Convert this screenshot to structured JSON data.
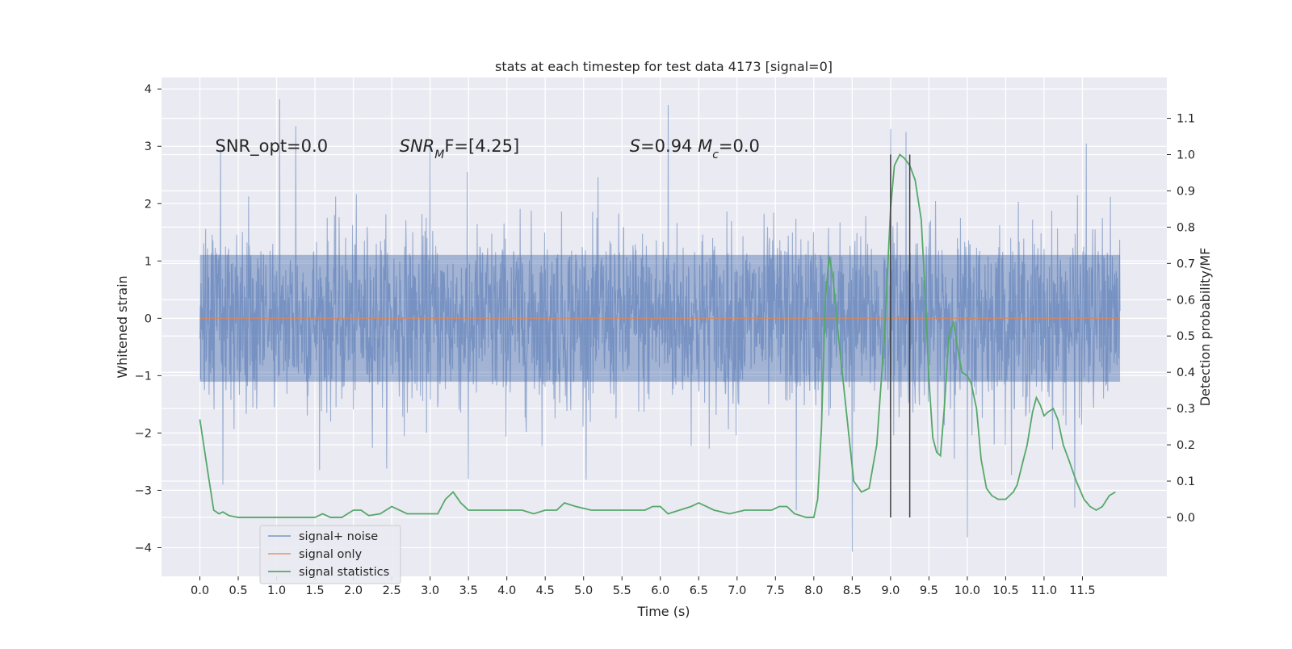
{
  "chart_data": {
    "type": "line",
    "title": "stats at each timestep for test data 4173 [signal=0]",
    "xlabel": "Time (s)",
    "ylabel": "Whitened strain",
    "y2label": "Detection probability/MF",
    "xlim": [
      -0.5,
      12.6
    ],
    "ylim": [
      -4.5,
      4.2
    ],
    "y2lim": [
      -0.1625,
      1.2125
    ],
    "grid": true,
    "x_ticks": [
      0.0,
      0.5,
      1.0,
      1.5,
      2.0,
      2.5,
      3.0,
      3.5,
      4.0,
      4.5,
      5.0,
      5.5,
      6.0,
      6.5,
      7.0,
      7.5,
      8.0,
      8.5,
      9.0,
      9.5,
      10.0,
      10.5,
      11.0,
      11.5
    ],
    "x_tick_labels": [
      "0.0",
      "0.5",
      "1.0",
      "1.5",
      "2.0",
      "2.5",
      "3.0",
      "3.5",
      "4.0",
      "4.5",
      "5.0",
      "5.5",
      "6.0",
      "6.5",
      "7.0",
      "7.5",
      "8.0",
      "8.5",
      "9.0",
      "9.5",
      "10.0",
      "10.5",
      "11.0",
      "11.5"
    ],
    "y_ticks": [
      -4,
      -3,
      -2,
      -1,
      0,
      1,
      2,
      3,
      4
    ],
    "y_tick_labels": [
      "−4",
      "−3",
      "−2",
      "−1",
      "0",
      "1",
      "2",
      "3",
      "4"
    ],
    "y2_ticks": [
      0.0,
      0.1,
      0.2,
      0.3,
      0.4,
      0.5,
      0.6,
      0.7,
      0.8,
      0.9,
      1.0,
      1.1
    ],
    "y2_tick_labels": [
      "0.0",
      "0.1",
      "0.2",
      "0.3",
      "0.4",
      "0.5",
      "0.6",
      "0.7",
      "0.8",
      "0.9",
      "1.0",
      "1.1"
    ],
    "legend_placement": "lower-left",
    "series": [
      {
        "name": "signal+ noise",
        "axis": "left",
        "color": "#4c72b0",
        "kind": "noise-trace",
        "x_range": [
          0.0,
          11.99
        ],
        "typical_band": [
          -1.7,
          1.7
        ],
        "peaks_up": [
          [
            0.27,
            2.95
          ],
          [
            1.04,
            3.82
          ],
          [
            1.25,
            3.35
          ],
          [
            3.0,
            3.05
          ],
          [
            6.1,
            3.72
          ],
          [
            9.0,
            3.3
          ],
          [
            9.2,
            3.25
          ],
          [
            11.55,
            3.05
          ]
        ],
        "peaks_down": [
          [
            0.3,
            -2.9
          ],
          [
            3.5,
            -2.8
          ],
          [
            7.77,
            -3.35
          ],
          [
            8.5,
            -4.07
          ],
          [
            10.0,
            -3.82
          ],
          [
            11.4,
            -3.3
          ]
        ]
      },
      {
        "name": "signal only",
        "axis": "left",
        "color": "#dd8452",
        "x": [
          0.0,
          11.99
        ],
        "y": [
          0.0,
          0.0
        ]
      },
      {
        "name": "signal statistics",
        "axis": "right",
        "color": "#55a868",
        "x": [
          0.0,
          0.1,
          0.18,
          0.25,
          0.3,
          0.38,
          0.5,
          0.7,
          0.9,
          1.1,
          1.3,
          1.5,
          1.6,
          1.7,
          1.85,
          2.0,
          2.1,
          2.2,
          2.35,
          2.5,
          2.6,
          2.7,
          2.9,
          3.0,
          3.1,
          3.2,
          3.3,
          3.4,
          3.5,
          3.6,
          3.75,
          3.9,
          4.0,
          4.2,
          4.35,
          4.5,
          4.65,
          4.75,
          4.9,
          5.1,
          5.3,
          5.5,
          5.6,
          5.7,
          5.8,
          5.9,
          6.0,
          6.1,
          6.25,
          6.4,
          6.5,
          6.6,
          6.7,
          6.9,
          7.1,
          7.3,
          7.45,
          7.55,
          7.65,
          7.75,
          7.9,
          8.0,
          8.05,
          8.1,
          8.15,
          8.2,
          8.25,
          8.32,
          8.42,
          8.52,
          8.62,
          8.72,
          8.82,
          8.92,
          9.0,
          9.05,
          9.12,
          9.18,
          9.25,
          9.32,
          9.4,
          9.45,
          9.5,
          9.55,
          9.6,
          9.65,
          9.7,
          9.76,
          9.82,
          9.87,
          9.93,
          10.0,
          10.05,
          10.12,
          10.18,
          10.25,
          10.32,
          10.4,
          10.5,
          10.6,
          10.65,
          10.72,
          10.78,
          10.85,
          10.9,
          10.95,
          11.0,
          11.05,
          11.12,
          11.18,
          11.25,
          11.32,
          11.42,
          11.52,
          11.6,
          11.68,
          11.76,
          11.85,
          11.93
        ],
        "y": [
          0.27,
          0.13,
          0.02,
          0.01,
          0.015,
          0.005,
          0.0,
          0.0,
          0.0,
          0.0,
          0.0,
          0.0,
          0.01,
          0.0,
          0.0,
          0.02,
          0.02,
          0.005,
          0.01,
          0.03,
          0.02,
          0.01,
          0.01,
          0.01,
          0.01,
          0.05,
          0.07,
          0.04,
          0.02,
          0.02,
          0.02,
          0.02,
          0.02,
          0.02,
          0.01,
          0.02,
          0.02,
          0.04,
          0.03,
          0.02,
          0.02,
          0.02,
          0.02,
          0.02,
          0.02,
          0.03,
          0.03,
          0.01,
          0.02,
          0.03,
          0.04,
          0.03,
          0.02,
          0.01,
          0.02,
          0.02,
          0.02,
          0.03,
          0.03,
          0.01,
          0.0,
          0.0,
          0.05,
          0.25,
          0.6,
          0.72,
          0.66,
          0.5,
          0.3,
          0.1,
          0.07,
          0.08,
          0.2,
          0.5,
          0.85,
          0.97,
          1.0,
          0.99,
          0.97,
          0.93,
          0.82,
          0.62,
          0.38,
          0.22,
          0.18,
          0.17,
          0.3,
          0.5,
          0.54,
          0.47,
          0.4,
          0.39,
          0.37,
          0.3,
          0.16,
          0.08,
          0.06,
          0.05,
          0.05,
          0.07,
          0.09,
          0.15,
          0.2,
          0.29,
          0.33,
          0.31,
          0.28,
          0.29,
          0.3,
          0.27,
          0.2,
          0.16,
          0.1,
          0.05,
          0.03,
          0.02,
          0.03,
          0.06,
          0.07
        ]
      }
    ],
    "vlines": [
      {
        "x": 9.0,
        "y2_range": [
          0.0,
          1.0
        ],
        "color": "#404040"
      },
      {
        "x": 9.25,
        "y2_range": [
          0.0,
          1.0
        ],
        "color": "#404040"
      }
    ],
    "annotations": [
      {
        "id": "snr-opt",
        "segments": [
          {
            "t": "SNR_opt=0.0"
          }
        ],
        "x": 0.2,
        "y": 3.0
      },
      {
        "id": "snr-mf",
        "segments": [
          {
            "t": "SNR",
            "i": true
          },
          {
            "t": "M",
            "i": true,
            "sub": true
          },
          {
            "t": "F=[4.25]"
          }
        ],
        "x": 2.6,
        "y": 3.0
      },
      {
        "id": "stat-mc",
        "segments": [
          {
            "t": "S",
            "i": true
          },
          {
            "t": "=0.94   "
          },
          {
            "t": "M",
            "i": true
          },
          {
            "t": "c",
            "i": true,
            "sub": true
          },
          {
            "t": "=0.0"
          }
        ],
        "x": 5.6,
        "y": 3.0
      }
    ]
  }
}
